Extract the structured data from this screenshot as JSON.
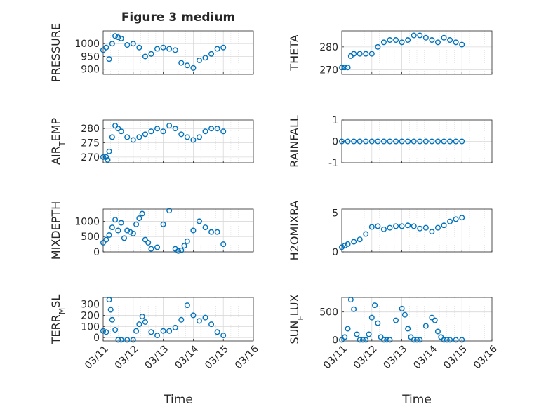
{
  "figure": {
    "title": "Figure 3 medium",
    "xlabel": "Time",
    "x_ticks": [
      "03/11",
      "03/12",
      "03/13",
      "03/14",
      "03/15",
      "03/16"
    ],
    "marker_color": "#0072BD",
    "grid_color": "#d9d9d9"
  },
  "chart_data": [
    {
      "type": "scatter",
      "ylabel": "PRESSURE",
      "ylim": [
        880,
        1050
      ],
      "yticks": [
        "900",
        "950",
        "1000"
      ],
      "ytick_values": [
        900,
        950,
        1000
      ],
      "x_days": [
        0,
        0.1,
        0.2,
        0.3,
        0.4,
        0.5,
        0.6,
        0.8,
        1.0,
        1.2,
        1.4,
        1.6,
        1.8,
        2.0,
        2.2,
        2.4,
        2.6,
        2.8,
        3.0,
        3.2,
        3.4,
        3.6,
        3.8,
        4.0
      ],
      "values": [
        975,
        985,
        940,
        1000,
        1030,
        1025,
        1020,
        995,
        1000,
        985,
        950,
        960,
        980,
        985,
        980,
        975,
        925,
        915,
        905,
        935,
        945,
        960,
        980,
        985
      ]
    },
    {
      "type": "scatter",
      "ylabel": "THETA",
      "ylim": [
        268,
        287
      ],
      "yticks": [
        "270",
        "280"
      ],
      "ytick_values": [
        270,
        280
      ],
      "x_days": [
        0,
        0.1,
        0.2,
        0.3,
        0.4,
        0.6,
        0.8,
        1.0,
        1.2,
        1.4,
        1.6,
        1.8,
        2.0,
        2.2,
        2.4,
        2.6,
        2.8,
        3.0,
        3.2,
        3.4,
        3.6,
        3.8,
        4.0
      ],
      "values": [
        271,
        271,
        271,
        276,
        277,
        277,
        277,
        277,
        280,
        282,
        283,
        283,
        282,
        283,
        285,
        285,
        284,
        283,
        282,
        284,
        283,
        282,
        281
      ]
    },
    {
      "type": "scatter",
      "ylabel": "AIR_TEMP",
      "ylabel_main": "AIR",
      "ylabel_sub": "T",
      "ylabel_rest": "EMP",
      "ylim": [
        268,
        283
      ],
      "yticks": [
        "270",
        "275",
        "280"
      ],
      "ytick_values": [
        270,
        275,
        280
      ],
      "x_days": [
        0,
        0.1,
        0.15,
        0.2,
        0.3,
        0.4,
        0.5,
        0.6,
        0.8,
        1.0,
        1.2,
        1.4,
        1.6,
        1.8,
        2.0,
        2.2,
        2.4,
        2.6,
        2.8,
        3.0,
        3.2,
        3.4,
        3.6,
        3.8,
        4.0
      ],
      "values": [
        270,
        270,
        269,
        272,
        277,
        281,
        280,
        279,
        277,
        276,
        277,
        278,
        279,
        280,
        279,
        281,
        280,
        278,
        277,
        276,
        277,
        279,
        280,
        280,
        279
      ]
    },
    {
      "type": "scatter",
      "ylabel": "RAINFALL",
      "ylim": [
        -1,
        1
      ],
      "yticks": [
        "-1",
        "0",
        "1"
      ],
      "ytick_values": [
        -1,
        0,
        1
      ],
      "x_days": [
        0,
        0.2,
        0.4,
        0.6,
        0.8,
        1.0,
        1.2,
        1.4,
        1.6,
        1.8,
        2.0,
        2.2,
        2.4,
        2.6,
        2.8,
        3.0,
        3.2,
        3.4,
        3.6,
        3.8,
        4.0
      ],
      "values": [
        0,
        0,
        0,
        0,
        0,
        0,
        0,
        0,
        0,
        0,
        0,
        0,
        0,
        0,
        0,
        0,
        0,
        0,
        0,
        0,
        0
      ]
    },
    {
      "type": "scatter",
      "ylabel": "MIXDEPTH",
      "ylim": [
        0,
        1400
      ],
      "yticks": [
        "0",
        "500",
        "1000"
      ],
      "ytick_values": [
        0,
        500,
        1000
      ],
      "x_days": [
        0,
        0.1,
        0.2,
        0.3,
        0.4,
        0.5,
        0.6,
        0.7,
        0.8,
        0.9,
        1.0,
        1.1,
        1.2,
        1.3,
        1.4,
        1.5,
        1.6,
        1.8,
        2.0,
        2.2,
        2.4,
        2.5,
        2.6,
        2.7,
        2.8,
        3.0,
        3.2,
        3.4,
        3.6,
        3.8,
        4.0
      ],
      "values": [
        300,
        400,
        550,
        800,
        1050,
        700,
        950,
        450,
        700,
        650,
        600,
        900,
        1100,
        1250,
        400,
        300,
        100,
        150,
        900,
        1350,
        100,
        30,
        50,
        200,
        350,
        700,
        1000,
        800,
        650,
        650,
        250
      ]
    },
    {
      "type": "scatter",
      "ylabel": "H2OMIXRA",
      "ylim": [
        0,
        5.5
      ],
      "yticks": [
        "0",
        "5"
      ],
      "ytick_values": [
        0,
        5
      ],
      "x_days": [
        0,
        0.1,
        0.2,
        0.4,
        0.6,
        0.8,
        1.0,
        1.2,
        1.4,
        1.6,
        1.8,
        2.0,
        2.2,
        2.4,
        2.6,
        2.8,
        3.0,
        3.2,
        3.4,
        3.6,
        3.8,
        4.0
      ],
      "values": [
        0.6,
        0.8,
        1.0,
        1.3,
        1.6,
        2.3,
        3.2,
        3.3,
        2.9,
        3.1,
        3.3,
        3.3,
        3.4,
        3.3,
        3.0,
        3.1,
        2.6,
        3.1,
        3.4,
        3.9,
        4.2,
        4.4
      ]
    },
    {
      "type": "scatter",
      "ylabel": "TERR_MSL",
      "ylabel_main": "TERR",
      "ylabel_sub": "M",
      "ylabel_rest": "SL",
      "ylim": [
        -30,
        360
      ],
      "yticks": [
        "0",
        "100",
        "200",
        "300"
      ],
      "ytick_values": [
        0,
        100,
        200,
        300
      ],
      "x_days": [
        0,
        0.1,
        0.2,
        0.25,
        0.3,
        0.4,
        0.5,
        0.6,
        0.8,
        1.0,
        1.1,
        1.2,
        1.3,
        1.4,
        1.6,
        1.8,
        2.0,
        2.2,
        2.4,
        2.6,
        2.8,
        3.0,
        3.2,
        3.4,
        3.6,
        3.8,
        4.0
      ],
      "values": [
        60,
        50,
        340,
        250,
        160,
        70,
        -20,
        -20,
        -20,
        -20,
        60,
        120,
        190,
        140,
        50,
        20,
        60,
        60,
        90,
        160,
        290,
        200,
        150,
        180,
        120,
        50,
        20
      ]
    },
    {
      "type": "scatter",
      "ylabel": "SUN_FLUX",
      "ylabel_main": "SUN",
      "ylabel_sub": "F",
      "ylabel_rest": "LUX",
      "ylim": [
        -20,
        760
      ],
      "yticks": [
        "0",
        "500"
      ],
      "ytick_values": [
        0,
        500
      ],
      "x_days": [
        0,
        0.1,
        0.2,
        0.3,
        0.4,
        0.5,
        0.6,
        0.7,
        0.8,
        0.9,
        1.0,
        1.1,
        1.2,
        1.3,
        1.4,
        1.5,
        1.6,
        1.8,
        2.0,
        2.1,
        2.2,
        2.3,
        2.4,
        2.5,
        2.6,
        2.8,
        3.0,
        3.1,
        3.2,
        3.3,
        3.4,
        3.5,
        3.6,
        3.8,
        4.0
      ],
      "values": [
        0,
        50,
        200,
        720,
        550,
        100,
        0,
        0,
        0,
        100,
        400,
        620,
        300,
        50,
        0,
        0,
        0,
        350,
        560,
        450,
        200,
        50,
        0,
        0,
        0,
        250,
        400,
        350,
        150,
        50,
        0,
        0,
        0,
        0,
        0
      ]
    }
  ]
}
